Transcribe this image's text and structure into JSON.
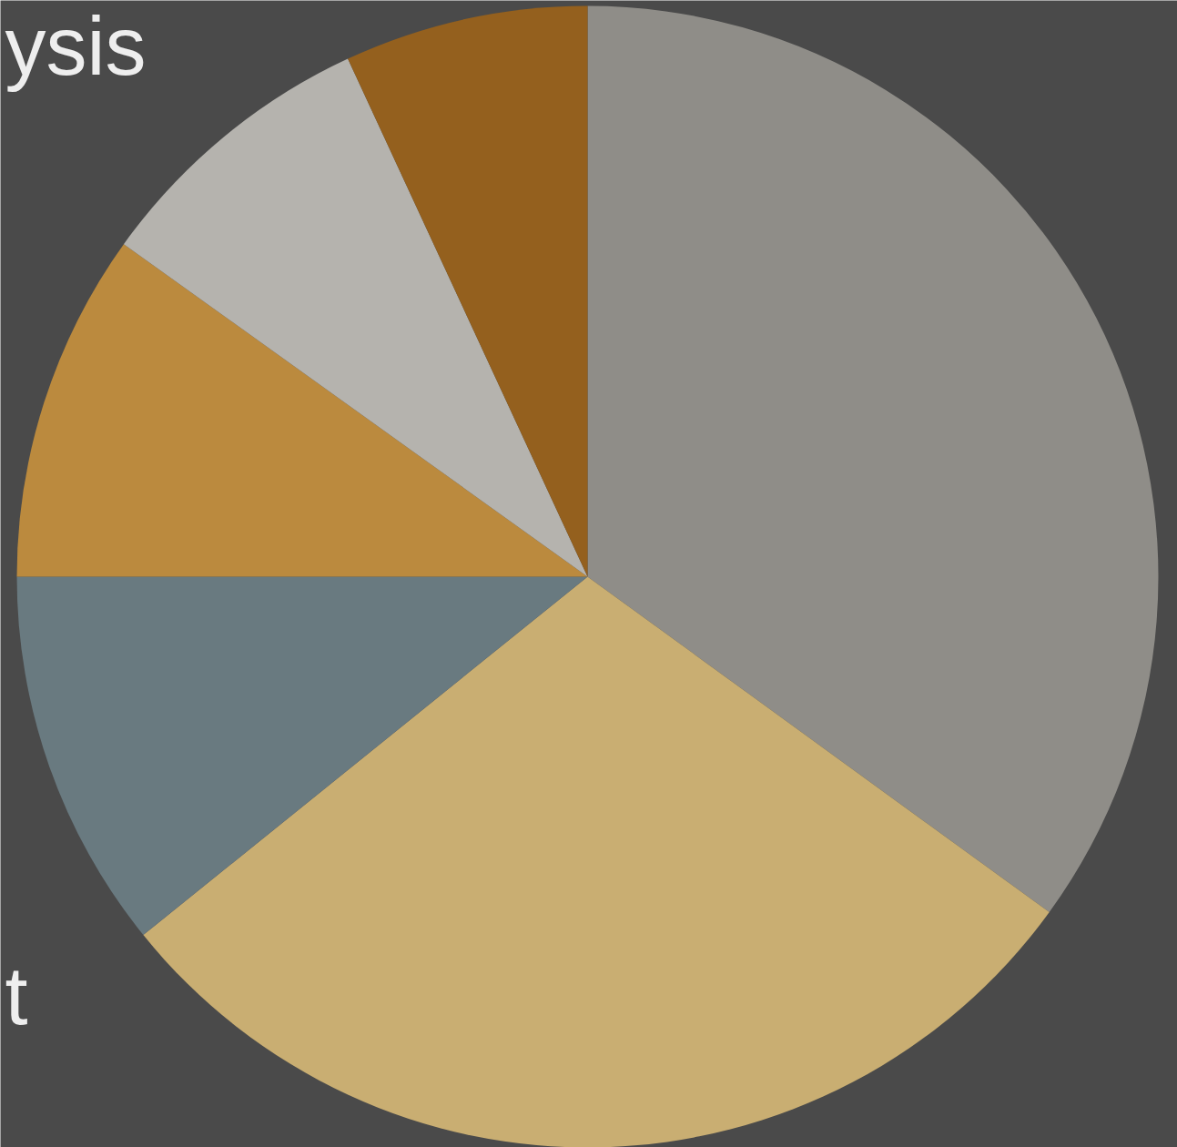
{
  "chart_data": {
    "type": "pie",
    "title": "ysis",
    "annotations": [
      "t"
    ],
    "values": [
      35,
      29.2,
      10.8,
      9.9,
      8.2,
      6.9
    ],
    "colors": [
      "#8f8d88",
      "#c9ae72",
      "#697a80",
      "#bb8a3e",
      "#b5b3ae",
      "#94601e"
    ]
  }
}
